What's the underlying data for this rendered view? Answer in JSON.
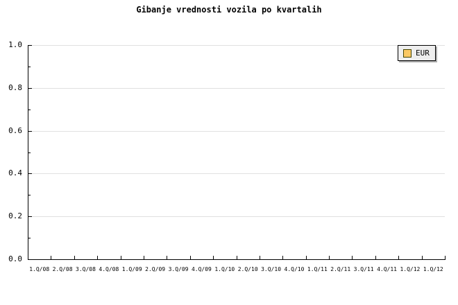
{
  "title": "Gibanje vrednosti vozila po kvartalih",
  "legend": {
    "items": [
      {
        "label": "EUR",
        "swatch_color": "#FAC864"
      }
    ]
  },
  "colors": {
    "background": "#FFFFFF",
    "grid": "#E0E0E0",
    "axis": "#000000",
    "legend_background": "#EEEEEE",
    "legend_border": "#000000",
    "legend_shadow": "#AAAAAA",
    "series_eur": "#FAC864"
  },
  "chart_data": {
    "type": "line",
    "title": "Gibanje vrednosti vozila po kvartalih",
    "xlabel": "",
    "ylabel": "",
    "categories": [
      "1.Q/08",
      "2.Q/08",
      "3.Q/08",
      "4.Q/08",
      "1.Q/09",
      "2.Q/09",
      "3.Q/09",
      "4.Q/09",
      "1.Q/10",
      "2.Q/10",
      "3.Q/10",
      "4.Q/10",
      "1.Q/11",
      "2.Q/11",
      "3.Q/11",
      "4.Q/11",
      "1.Q/12",
      "1.Q/12"
    ],
    "series": [
      {
        "name": "EUR",
        "color": "#FAC864",
        "values": []
      }
    ],
    "plot_is_empty": true,
    "ylim": [
      0.0,
      1.0
    ],
    "yticks": [
      0.0,
      0.2,
      0.4,
      0.6,
      0.8,
      1.0
    ],
    "ytick_labels": [
      "0.0",
      "0.2",
      "0.4",
      "0.6",
      "0.8",
      "1.0"
    ],
    "y_minor_ticks": [
      0.1,
      0.3,
      0.5,
      0.7,
      0.9
    ],
    "grid": true,
    "legend_position": "top-right"
  }
}
